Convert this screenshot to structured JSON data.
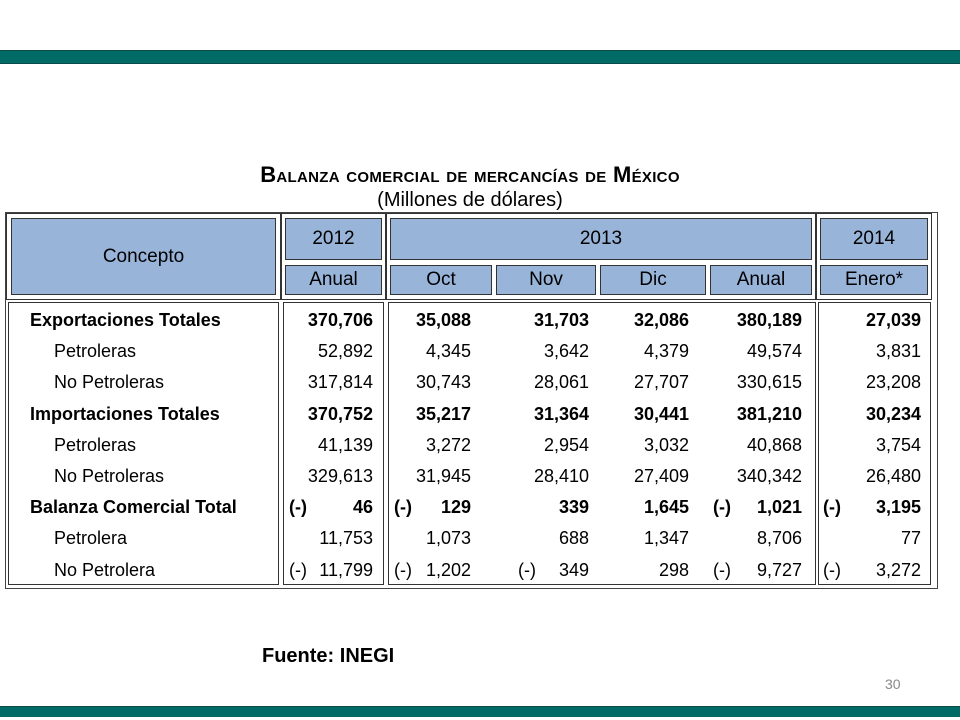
{
  "slide": {
    "title_main": "Balanza comercial de mercancías de México",
    "subtitle": "(Millones de dólares)",
    "source": "Fuente: INEGI",
    "page_number": "30"
  },
  "table": {
    "header_concepto": "Concepto",
    "years": [
      "2012",
      "2013",
      "2014"
    ],
    "subheaders": [
      "Anual",
      "Oct",
      "Nov",
      "Dic",
      "Anual",
      "Enero*"
    ],
    "rows": [
      {
        "label": "Exportaciones Totales",
        "bold": true,
        "indent": false,
        "cells": [
          {
            "v": "370,706"
          },
          {
            "v": "35,088"
          },
          {
            "v": "31,703"
          },
          {
            "v": "32,086"
          },
          {
            "v": "380,189"
          },
          {
            "v": "27,039"
          }
        ]
      },
      {
        "label": "Petroleras",
        "bold": false,
        "indent": true,
        "cells": [
          {
            "v": "52,892"
          },
          {
            "v": "4,345"
          },
          {
            "v": "3,642"
          },
          {
            "v": "4,379"
          },
          {
            "v": "49,574"
          },
          {
            "v": "3,831"
          }
        ]
      },
      {
        "label": "No Petroleras",
        "bold": false,
        "indent": true,
        "cells": [
          {
            "v": "317,814"
          },
          {
            "v": "30,743"
          },
          {
            "v": "28,061"
          },
          {
            "v": "27,707"
          },
          {
            "v": "330,615"
          },
          {
            "v": "23,208"
          }
        ]
      },
      {
        "label": "Importaciones Totales",
        "bold": true,
        "indent": false,
        "cells": [
          {
            "v": "370,752"
          },
          {
            "v": "35,217"
          },
          {
            "v": "31,364"
          },
          {
            "v": "30,441"
          },
          {
            "v": "381,210"
          },
          {
            "v": "30,234"
          }
        ]
      },
      {
        "label": "Petroleras",
        "bold": false,
        "indent": true,
        "cells": [
          {
            "v": "41,139"
          },
          {
            "v": "3,272"
          },
          {
            "v": "2,954"
          },
          {
            "v": "3,032"
          },
          {
            "v": "40,868"
          },
          {
            "v": "3,754"
          }
        ]
      },
      {
        "label": "No Petroleras",
        "bold": false,
        "indent": true,
        "cells": [
          {
            "v": "329,613"
          },
          {
            "v": "31,945"
          },
          {
            "v": "28,410"
          },
          {
            "v": "27,409"
          },
          {
            "v": "340,342"
          },
          {
            "v": "26,480"
          }
        ]
      },
      {
        "label": "Balanza Comercial Total",
        "bold": true,
        "indent": false,
        "cells": [
          {
            "n": "(-)",
            "v": "46"
          },
          {
            "n": "(-)",
            "v": "129"
          },
          {
            "v": "339"
          },
          {
            "v": "1,645"
          },
          {
            "n": "(-)",
            "v": "1,021"
          },
          {
            "n": "(-)",
            "v": "3,195"
          }
        ]
      },
      {
        "label": "Petrolera",
        "bold": false,
        "indent": true,
        "cells": [
          {
            "v": "11,753"
          },
          {
            "v": "1,073"
          },
          {
            "v": "688"
          },
          {
            "v": "1,347"
          },
          {
            "v": "8,706"
          },
          {
            "v": "77"
          }
        ]
      },
      {
        "label": "No Petrolera",
        "bold": false,
        "indent": true,
        "cells": [
          {
            "n": "(-)",
            "v": "11,799"
          },
          {
            "n": "(-)",
            "v": "1,202"
          },
          {
            "n": "(-)",
            "v": "349"
          },
          {
            "v": "298"
          },
          {
            "n": "(-)",
            "v": "9,727"
          },
          {
            "n": "(-)",
            "v": "3,272"
          }
        ]
      }
    ]
  },
  "colors": {
    "band": "#006b66",
    "header_fill": "#98b4d9"
  }
}
